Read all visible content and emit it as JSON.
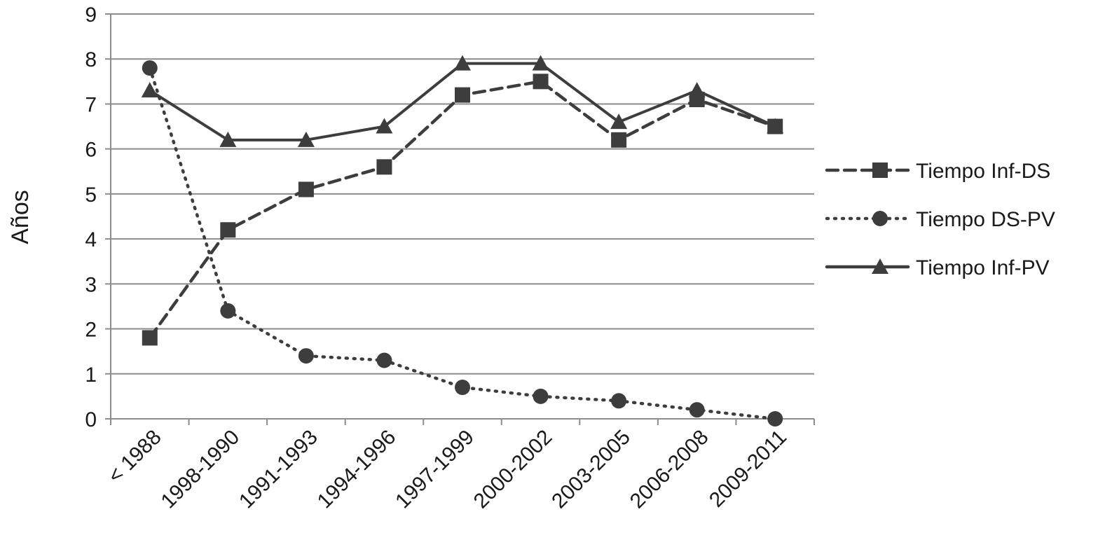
{
  "chart_data": {
    "type": "line",
    "categories": [
      "< 1988",
      "1998-1990",
      "1991-1993",
      "1994-1996",
      "1997-1999",
      "2000-2002",
      "2003-2005",
      "2006-2008",
      "2009-2011"
    ],
    "series": [
      {
        "name": "Tiempo Inf-DS",
        "values": [
          1.8,
          4.2,
          5.1,
          5.6,
          7.2,
          7.5,
          6.2,
          7.1,
          6.5
        ],
        "line_style": "dashed",
        "marker": "square"
      },
      {
        "name": "Tiempo DS-PV",
        "values": [
          7.8,
          2.4,
          1.4,
          1.3,
          0.7,
          0.5,
          0.4,
          0.2,
          0.0
        ],
        "line_style": "dotted",
        "marker": "circle"
      },
      {
        "name": "Tiempo Inf-PV",
        "values": [
          7.3,
          6.2,
          6.2,
          6.5,
          7.9,
          7.9,
          6.6,
          7.3,
          6.5
        ],
        "line_style": "solid",
        "marker": "triangle"
      }
    ],
    "xlabel": "",
    "ylabel": "Años",
    "ylim": [
      0,
      9
    ],
    "yticks": [
      0,
      1,
      2,
      3,
      4,
      5,
      6,
      7,
      8,
      9
    ],
    "grid": "horizontal",
    "legend_position": "right",
    "colors": {
      "series": "#3d3d3d",
      "grid": "#8c8c8c",
      "text": "#1a1a1a"
    }
  }
}
